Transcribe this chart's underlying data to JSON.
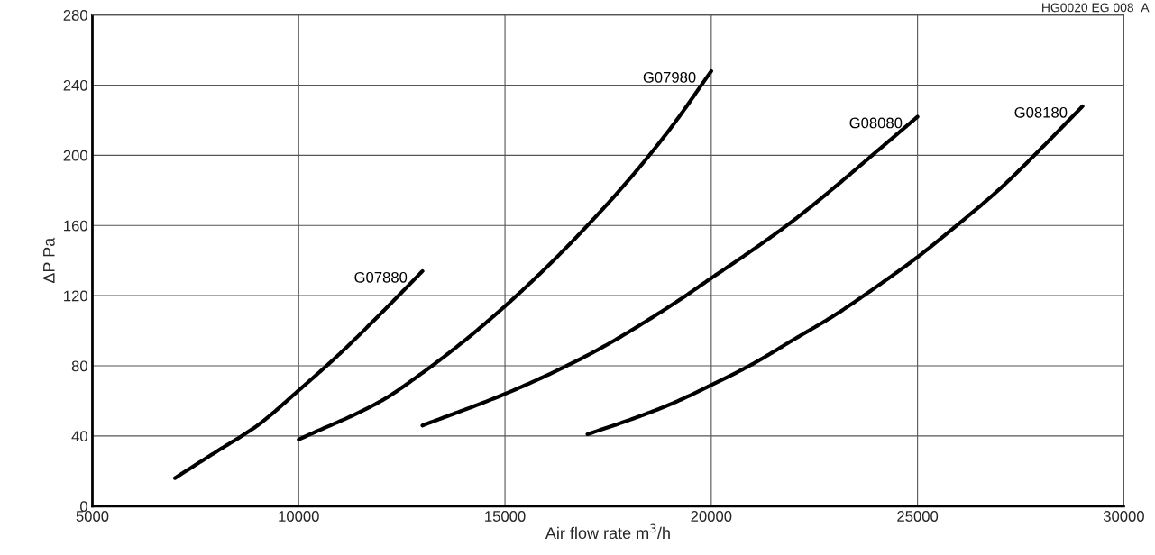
{
  "chart_data": {
    "type": "line",
    "xlabel": "Air flow rate m$^{3}$/h",
    "ylabel": "ΔP Pa",
    "annotations": [
      "HG0020 EG 008_A"
    ],
    "xlim": [
      5000,
      30000
    ],
    "xticks": [
      5000,
      10000,
      15000,
      20000,
      25000,
      30000
    ],
    "ylim": [
      0,
      280
    ],
    "yticks": [
      0,
      40,
      80,
      120,
      160,
      200,
      240,
      280
    ],
    "grid": true,
    "legend": false,
    "marker": "none",
    "line_style": "solid",
    "series": [
      {
        "name": "G07880",
        "color": "#000000",
        "x": [
          7000,
          8000,
          9000,
          10000,
          11000,
          12000,
          13000
        ],
        "values": [
          16,
          31,
          46,
          66,
          87,
          110,
          134
        ]
      },
      {
        "name": "G07980",
        "color": "#000000",
        "x": [
          10000,
          12000,
          13000,
          14000,
          15000,
          16000,
          17000,
          18000,
          19000,
          20000
        ],
        "values": [
          38,
          60,
          76,
          94,
          114,
          136,
          160,
          186,
          215,
          248
        ]
      },
      {
        "name": "G08080",
        "color": "#000000",
        "x": [
          13000,
          15000,
          17000,
          19000,
          20000,
          21000,
          22000,
          23000,
          24000,
          25000
        ],
        "values": [
          46,
          64,
          86,
          114,
          130,
          146,
          163,
          182,
          202,
          222
        ]
      },
      {
        "name": "G08180",
        "color": "#000000",
        "x": [
          17000,
          18000,
          19000,
          20000,
          21000,
          22000,
          23000,
          24000,
          25000,
          26000,
          27000,
          28000,
          29000
        ],
        "values": [
          41,
          49,
          58,
          69,
          81,
          95,
          109,
          125,
          142,
          161,
          181,
          204,
          228
        ]
      }
    ]
  }
}
